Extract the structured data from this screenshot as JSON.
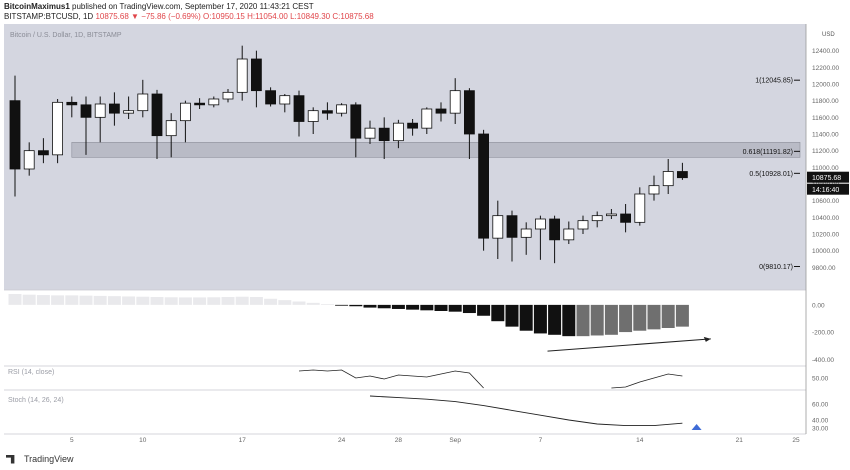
{
  "header": {
    "author": "BitcoinMaximus1",
    "published": "published on TradingView.com, September 17, 2020 11:43:21 CEST",
    "symbol": "BITSTAMP:BTCUSD, 1D",
    "last": "10875.68",
    "change": "▼ −75.86 (−0.69%)",
    "ohlc": "O:10950.15  H:11054.00  L:10849.30  C:10875.68"
  },
  "footer": {
    "brand": "TradingView"
  },
  "colors": {
    "pane_bg": "#d4d6e0",
    "zone": "#b9bbc6",
    "up_body": "#ffffff",
    "down_body": "#111111",
    "price_tag": "#111111",
    "arrow": "#3f6bd6"
  },
  "chart_data": [
    {
      "type": "candlestick",
      "title": "Bitcoin / U.S. Dollar, 1D, BITSTAMP",
      "currency": "USD",
      "ylim": [
        9600,
        12600
      ],
      "y_ticks": [
        9800,
        10000,
        10200,
        10400,
        10600,
        10800,
        11000,
        11200,
        11400,
        11600,
        11800,
        12000,
        12200,
        12400
      ],
      "x_ticks": [
        {
          "label": "5",
          "day": 5
        },
        {
          "label": "10",
          "day": 10
        },
        {
          "label": "17",
          "day": 17
        },
        {
          "label": "24",
          "day": 24
        },
        {
          "label": "28",
          "day": 28
        },
        {
          "label": "Sep",
          "day": 32
        },
        {
          "label": "7",
          "day": 38
        },
        {
          "label": "14",
          "day": 45
        },
        {
          "label": "21",
          "day": 52
        },
        {
          "label": "25",
          "day": 56
        }
      ],
      "candles": [
        {
          "day": 1,
          "o": 11800,
          "h": 12100,
          "l": 10650,
          "c": 10980
        },
        {
          "day": 2,
          "o": 10980,
          "h": 11300,
          "l": 10900,
          "c": 11200
        },
        {
          "day": 3,
          "o": 11200,
          "h": 11350,
          "l": 11050,
          "c": 11150
        },
        {
          "day": 4,
          "o": 11150,
          "h": 11820,
          "l": 11050,
          "c": 11780
        },
        {
          "day": 5,
          "o": 11780,
          "h": 11850,
          "l": 11600,
          "c": 11750
        },
        {
          "day": 6,
          "o": 11750,
          "h": 11850,
          "l": 11150,
          "c": 11600
        },
        {
          "day": 7,
          "o": 11600,
          "h": 11850,
          "l": 11300,
          "c": 11760
        },
        {
          "day": 8,
          "o": 11760,
          "h": 11900,
          "l": 11500,
          "c": 11650
        },
        {
          "day": 9,
          "o": 11650,
          "h": 11850,
          "l": 11580,
          "c": 11680
        },
        {
          "day": 10,
          "o": 11680,
          "h": 12050,
          "l": 11600,
          "c": 11880
        },
        {
          "day": 11,
          "o": 11880,
          "h": 11930,
          "l": 11100,
          "c": 11380
        },
        {
          "day": 12,
          "o": 11380,
          "h": 11650,
          "l": 11120,
          "c": 11560
        },
        {
          "day": 13,
          "o": 11560,
          "h": 11800,
          "l": 11300,
          "c": 11770
        },
        {
          "day": 14,
          "o": 11770,
          "h": 11830,
          "l": 11700,
          "c": 11750
        },
        {
          "day": 15,
          "o": 11750,
          "h": 11850,
          "l": 11720,
          "c": 11820
        },
        {
          "day": 16,
          "o": 11820,
          "h": 11940,
          "l": 11780,
          "c": 11900
        },
        {
          "day": 17,
          "o": 11900,
          "h": 12460,
          "l": 11800,
          "c": 12300
        },
        {
          "day": 18,
          "o": 12300,
          "h": 12400,
          "l": 11720,
          "c": 11920
        },
        {
          "day": 19,
          "o": 11920,
          "h": 11960,
          "l": 11730,
          "c": 11760
        },
        {
          "day": 20,
          "o": 11760,
          "h": 11880,
          "l": 11660,
          "c": 11860
        },
        {
          "day": 21,
          "o": 11860,
          "h": 11920,
          "l": 11370,
          "c": 11550
        },
        {
          "day": 22,
          "o": 11550,
          "h": 11720,
          "l": 11400,
          "c": 11680
        },
        {
          "day": 23,
          "o": 11680,
          "h": 11780,
          "l": 11570,
          "c": 11650
        },
        {
          "day": 24,
          "o": 11650,
          "h": 11770,
          "l": 11610,
          "c": 11750
        },
        {
          "day": 25,
          "o": 11750,
          "h": 11780,
          "l": 11120,
          "c": 11350
        },
        {
          "day": 26,
          "o": 11350,
          "h": 11560,
          "l": 11280,
          "c": 11470
        },
        {
          "day": 27,
          "o": 11470,
          "h": 11600,
          "l": 11100,
          "c": 11320
        },
        {
          "day": 28,
          "o": 11320,
          "h": 11570,
          "l": 11230,
          "c": 11530
        },
        {
          "day": 29,
          "o": 11530,
          "h": 11580,
          "l": 11380,
          "c": 11470
        },
        {
          "day": 30,
          "o": 11470,
          "h": 11720,
          "l": 11400,
          "c": 11700
        },
        {
          "day": 31,
          "o": 11700,
          "h": 11780,
          "l": 11550,
          "c": 11650
        },
        {
          "day": 32,
          "o": 11650,
          "h": 12070,
          "l": 11520,
          "c": 11920
        },
        {
          "day": 33,
          "o": 11920,
          "h": 11950,
          "l": 11100,
          "c": 11400
        },
        {
          "day": 34,
          "o": 11400,
          "h": 11450,
          "l": 10000,
          "c": 10150
        },
        {
          "day": 35,
          "o": 10150,
          "h": 10600,
          "l": 9900,
          "c": 10420
        },
        {
          "day": 36,
          "o": 10420,
          "h": 10480,
          "l": 9870,
          "c": 10160
        },
        {
          "day": 37,
          "o": 10160,
          "h": 10340,
          "l": 9950,
          "c": 10260
        },
        {
          "day": 38,
          "o": 10260,
          "h": 10420,
          "l": 9890,
          "c": 10380
        },
        {
          "day": 39,
          "o": 10380,
          "h": 10420,
          "l": 9850,
          "c": 10130
        },
        {
          "day": 40,
          "o": 10130,
          "h": 10350,
          "l": 10080,
          "c": 10260
        },
        {
          "day": 41,
          "o": 10260,
          "h": 10420,
          "l": 10200,
          "c": 10360
        },
        {
          "day": 42,
          "o": 10360,
          "h": 10470,
          "l": 10280,
          "c": 10420
        },
        {
          "day": 43,
          "o": 10420,
          "h": 10500,
          "l": 10380,
          "c": 10440
        },
        {
          "day": 44,
          "o": 10440,
          "h": 10560,
          "l": 10220,
          "c": 10340
        },
        {
          "day": 45,
          "o": 10340,
          "h": 10760,
          "l": 10300,
          "c": 10680
        },
        {
          "day": 46,
          "o": 10680,
          "h": 10900,
          "l": 10600,
          "c": 10780
        },
        {
          "day": 47,
          "o": 10780,
          "h": 11100,
          "l": 10680,
          "c": 10950
        },
        {
          "day": 48,
          "o": 10950,
          "h": 11054,
          "l": 10849.3,
          "c": 10875.68
        }
      ],
      "fib_levels": [
        {
          "ratio": "1",
          "price": 12045.85,
          "label": "1(12045.85)"
        },
        {
          "ratio": "0.618",
          "price": 11191.82,
          "label": "0.618(11191.82)"
        },
        {
          "ratio": "0.5",
          "price": 10928.01,
          "label": "0.5(10928.01)"
        },
        {
          "ratio": "0",
          "price": 9810.17,
          "label": "0(9810.17)"
        }
      ],
      "resistance_zone": {
        "from": 11120,
        "to": 11300
      },
      "last_price_label": "10875.68",
      "countdown_label": "14:16:40"
    },
    {
      "type": "bar",
      "name": "momentum histogram",
      "ylim": [
        -420,
        80
      ],
      "y_ticks": [
        0,
        -200,
        -400
      ],
      "y_tick_labels": [
        "0.00",
        "-200.00",
        "-400.00"
      ],
      "legend_text": "",
      "days": [
        1,
        2,
        3,
        4,
        5,
        6,
        7,
        8,
        9,
        10,
        11,
        12,
        13,
        14,
        15,
        16,
        17,
        18,
        19,
        20,
        21,
        22,
        23,
        24,
        25,
        26,
        27,
        28,
        29,
        30,
        31,
        32,
        33,
        34,
        35,
        36,
        37,
        38,
        39,
        40,
        41,
        42,
        43,
        44,
        45,
        46,
        47,
        48
      ],
      "values": [
        80,
        75,
        72,
        70,
        70,
        68,
        66,
        64,
        62,
        60,
        58,
        56,
        55,
        55,
        56,
        58,
        60,
        58,
        45,
        35,
        25,
        15,
        5,
        -5,
        -10,
        -20,
        -25,
        -30,
        -35,
        -40,
        -45,
        -50,
        -60,
        -80,
        -120,
        -160,
        -190,
        -210,
        -220,
        -230,
        -230,
        -225,
        -220,
        -200,
        -190,
        -180,
        -170,
        -160
      ],
      "arrow_line": {
        "from": [
          38.5,
          -340
        ],
        "to": [
          50,
          -250
        ]
      }
    },
    {
      "type": "line",
      "name": "RSI",
      "legend_text": "RSI (14, close)",
      "ylim": [
        40,
        60
      ],
      "y_ticks": [
        50
      ],
      "y_tick_labels": [
        "50.00"
      ],
      "series": [
        {
          "name": "segment1",
          "x": [
            21,
            22,
            23,
            24,
            25,
            26,
            27,
            28,
            29,
            30,
            31,
            32,
            33,
            34
          ],
          "y": [
            57,
            58,
            57,
            58,
            50,
            52,
            49,
            53,
            52,
            51,
            54,
            57,
            55,
            40
          ]
        },
        {
          "name": "segment2",
          "x": [
            43,
            44,
            45,
            46,
            47,
            48
          ],
          "y": [
            40,
            41,
            46,
            50,
            54,
            52
          ]
        }
      ]
    },
    {
      "type": "line",
      "name": "Stoch",
      "legend_text": "Stoch (14, 26, 24)",
      "ylim": [
        25,
        75
      ],
      "y_ticks": [
        60,
        40,
        30
      ],
      "y_tick_labels": [
        "60.00",
        "40.00",
        "30.00"
      ],
      "series": [
        {
          "name": "k",
          "x": [
            26,
            28,
            30,
            32,
            34,
            36,
            38,
            40,
            42,
            44,
            46,
            48
          ],
          "y": [
            70,
            68,
            66,
            63,
            58,
            52,
            46,
            40,
            35,
            33,
            33,
            36
          ]
        }
      ],
      "arrow_marker_day": 49
    }
  ]
}
